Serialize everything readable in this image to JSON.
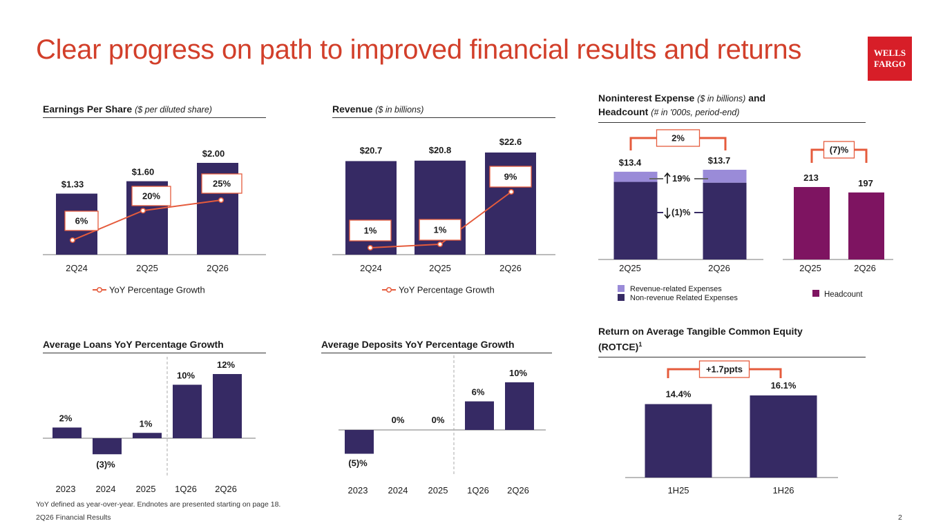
{
  "page": {
    "title": "Clear progress on path to improved financial results and returns",
    "logo_line1": "WELLS",
    "logo_line2": "FARGO",
    "footnote": "YoY defined as year-over-year. Endnotes are presented starting on page 18.",
    "footer_left": "2Q26 Financial Results",
    "page_number": "2"
  },
  "colors": {
    "accent": "#D23F2A",
    "bar": "#362A64",
    "bar_light": "#9A8BD8",
    "headcount": "#7E1461",
    "callout_border": "#E55B3C"
  },
  "chart_data": [
    {
      "id": "eps",
      "type": "bar",
      "title": "Earnings Per Share",
      "subtitle": "($ per diluted share)",
      "categories": [
        "2Q24",
        "2Q25",
        "2Q26"
      ],
      "values": [
        1.33,
        1.6,
        2.0
      ],
      "value_labels": [
        "$1.33",
        "$1.60",
        "$2.00"
      ],
      "ylim": [
        0,
        2.0
      ],
      "line_series": {
        "name": "YoY Percentage Growth",
        "values": [
          6,
          20,
          25
        ],
        "labels": [
          "6%",
          "20%",
          "25%"
        ]
      },
      "legend": "YoY Percentage Growth"
    },
    {
      "id": "revenue",
      "type": "bar",
      "title": "Revenue",
      "subtitle": "($ in billions)",
      "categories": [
        "2Q24",
        "2Q25",
        "2Q26"
      ],
      "values": [
        20.7,
        20.8,
        22.6
      ],
      "value_labels": [
        "$20.7",
        "$20.8",
        "$22.6"
      ],
      "ylim": [
        0,
        22.6
      ],
      "line_series": {
        "name": "YoY Percentage Growth",
        "values": [
          1,
          1,
          9
        ],
        "labels": [
          "1%",
          "1%",
          "9%"
        ]
      },
      "legend": "YoY Percentage Growth"
    },
    {
      "id": "expense",
      "type": "bar",
      "title": "Noninterest Expense",
      "title_sub1": "($ in billions)",
      "title_and": "and",
      "title_line2": "Headcount",
      "title_sub2": "(# in '000s, period-end)",
      "categories": [
        "2Q25",
        "2Q26"
      ],
      "series": [
        {
          "name": "Non-revenue Related Expenses",
          "values": [
            11.85,
            11.73
          ]
        },
        {
          "name": "Revenue-related Expenses",
          "values": [
            1.55,
            1.97
          ]
        }
      ],
      "totals": [
        "$13.4",
        "$13.7"
      ],
      "change_label": "2%",
      "growth_up": "19%",
      "growth_down": "(1)%",
      "headcount": {
        "categories": [
          "2Q25",
          "2Q26"
        ],
        "values": [
          213,
          197
        ],
        "labels": [
          "213",
          "197"
        ],
        "change_label": "(7)%",
        "legend": "Headcount"
      },
      "legend": [
        "Revenue-related Expenses",
        "Non-revenue Related Expenses"
      ]
    },
    {
      "id": "loans",
      "type": "bar",
      "title": "Average Loans YoY Percentage Growth",
      "categories": [
        "2023",
        "2024",
        "2025",
        "1Q26",
        "2Q26"
      ],
      "values": [
        2,
        -3,
        1,
        10,
        12
      ],
      "value_labels": [
        "2%",
        "(3)%",
        "1%",
        "10%",
        "12%"
      ],
      "ylim": [
        -3,
        12
      ]
    },
    {
      "id": "deposits",
      "type": "bar",
      "title": "Average Deposits YoY Percentage Growth",
      "categories": [
        "2023",
        "2024",
        "2025",
        "1Q26",
        "2Q26"
      ],
      "values": [
        -5,
        0,
        0,
        6,
        10
      ],
      "value_labels": [
        "(5)%",
        "0%",
        "0%",
        "6%",
        "10%"
      ],
      "ylim": [
        -5,
        10
      ]
    },
    {
      "id": "rotce",
      "type": "bar",
      "title": "Return on Average Tangible Common Equity",
      "title_line2": "(ROTCE)",
      "title_sup": "1",
      "categories": [
        "1H25",
        "1H26"
      ],
      "values": [
        14.4,
        16.1
      ],
      "value_labels": [
        "14.4%",
        "16.1%"
      ],
      "change_label": "+1.7ppts"
    }
  ]
}
